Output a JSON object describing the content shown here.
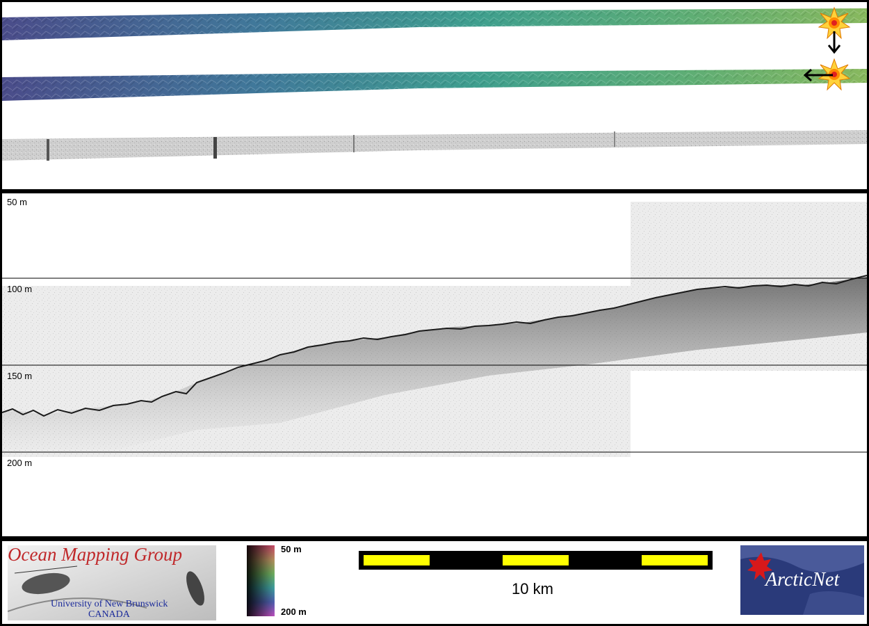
{
  "profile": {
    "depth_labels": [
      "50 m",
      "100 m",
      "150 m",
      "200 m"
    ]
  },
  "colorbar": {
    "top_label": "50 m",
    "bottom_label": "200 m"
  },
  "scale_bar": {
    "label": "10 km",
    "colors": {
      "fill": "#000000",
      "segment": "#ffff00"
    }
  },
  "logos": {
    "omg": {
      "title": "Ocean Mapping Group",
      "subtitle_line1": "University of New Brunswick",
      "subtitle_line2": "CANADA"
    },
    "arcticnet": {
      "name": "ArcticNet"
    }
  },
  "icons": [
    "sun-illumination-icon",
    "arrow-down-icon",
    "arrow-left-icon"
  ],
  "colors": {
    "frame": "#000000",
    "swath_start": "#4b4f8c",
    "swath_mid": "#3f9a8a",
    "swath_end": "#86b860"
  }
}
